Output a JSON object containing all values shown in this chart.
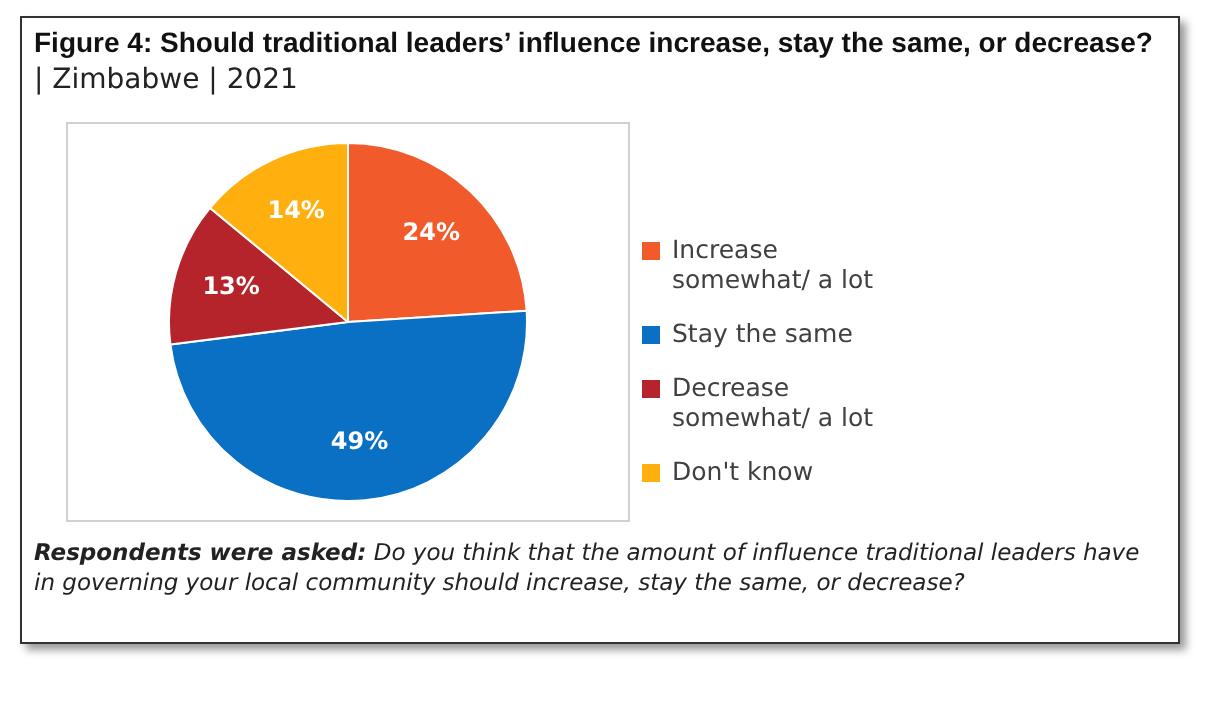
{
  "chart_data": {
    "type": "pie",
    "title": "Figure 4: Should traditional leaders’ influence increase, stay the same, or decrease?",
    "subtitle": "| Zimbabwe | 2021",
    "categories": [
      "Increase somewhat/ a lot",
      "Stay the same",
      "Decrease somewhat/ a lot",
      "Don't know"
    ],
    "values": [
      24,
      49,
      13,
      14
    ],
    "colors": [
      "#f15a2b",
      "#0a70c4",
      "#b5242b",
      "#ffb00f"
    ],
    "value_labels": [
      "24%",
      "49%",
      "13%",
      "14%"
    ],
    "legend": "right",
    "annotations": [
      "Respondents were asked:",
      "Do you think that the amount of influence traditional leaders have in governing your local community should increase, stay the same, or decrease?"
    ]
  }
}
